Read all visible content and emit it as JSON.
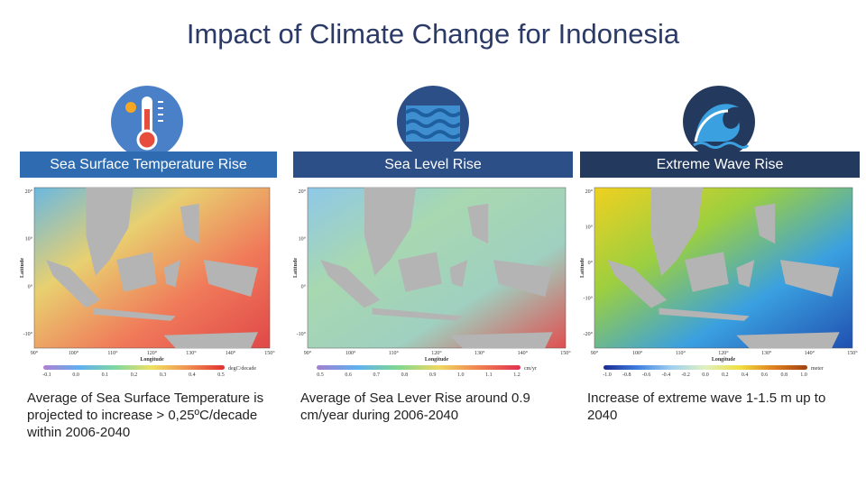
{
  "title": "Impact of Climate Change for Indonesia",
  "columns": [
    {
      "header": "Sea Surface Temperature Rise",
      "description": "Average of Sea Surface Temperature is projected to increase > 0,25ºC/decade within 2006-2040",
      "map": {
        "lat_label": "Latitude",
        "lon_label": "Longitude",
        "lat_ticks": [
          "20°",
          "10°",
          "0°",
          "-10°"
        ],
        "lon_ticks": [
          "90°",
          "100°",
          "110°",
          "120°",
          "130°",
          "140°",
          "150°"
        ],
        "colorbar_ticks": [
          "-0.1",
          "0.0",
          "0.1",
          "0.2",
          "0.3",
          "0.4",
          "0.5"
        ],
        "unit": "degC/decade"
      }
    },
    {
      "header": "Sea Level Rise",
      "description": "Average of Sea Lever Rise around 0.9 cm/year during 2006-2040",
      "map": {
        "lat_label": "Latitude",
        "lon_label": "Longitude",
        "lat_ticks": [
          "20°",
          "10°",
          "0°",
          "-10°"
        ],
        "lon_ticks": [
          "90°",
          "100°",
          "110°",
          "120°",
          "130°",
          "140°",
          "150°"
        ],
        "colorbar_ticks": [
          "0.5",
          "0.6",
          "0.7",
          "0.8",
          "0.9",
          "1.0",
          "1.1",
          "1.2"
        ],
        "unit": "cm/yr"
      }
    },
    {
      "header": "Extreme Wave Rise",
      "description": "Increase of extreme wave 1-1.5 m up to 2040",
      "map": {
        "lat_label": "Latitude",
        "lon_label": "Longitude",
        "lat_ticks": [
          "20°",
          "10°",
          "0°",
          "-10°",
          "-20°"
        ],
        "lon_ticks": [
          "90°",
          "100°",
          "110°",
          "120°",
          "130°",
          "140°",
          "150°"
        ],
        "colorbar_ticks": [
          "-1.0",
          "-0.8",
          "-0.6",
          "-0.4",
          "-0.2",
          "0.0",
          "0.2",
          "0.4",
          "0.6",
          "0.8",
          "1.0"
        ],
        "unit": "meter"
      }
    }
  ]
}
